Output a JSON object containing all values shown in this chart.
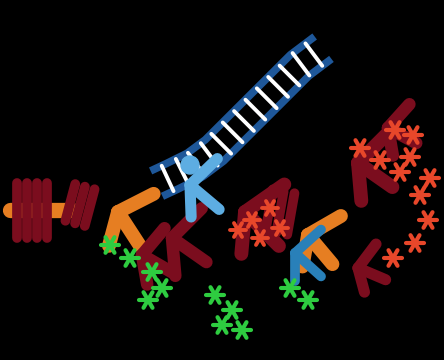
{
  "bg_color": "#000000",
  "colors": {
    "dark_blue": "#1e5799",
    "blue": "#2980b9",
    "light_blue": "#5dade2",
    "dark_red": "#7b0d1e",
    "maroon": "#6b1020",
    "orange": "#e67e22",
    "green": "#2ecc40",
    "red_orange": "#e8472a",
    "white": "#ffffff",
    "gray_blue": "#2c6fa0"
  },
  "figsize": [
    4.44,
    3.6
  ],
  "dpi": 100,
  "xlim": [
    0,
    444
  ],
  "ylim": [
    0,
    360
  ]
}
